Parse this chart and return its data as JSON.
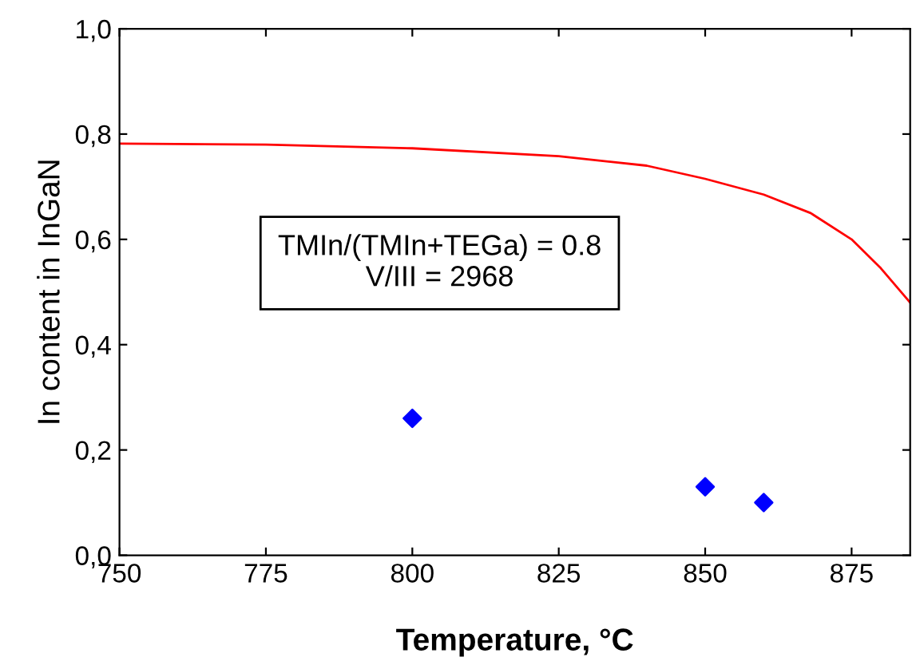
{
  "chart_data": {
    "type": "scatter",
    "xlabel": "Temperature, °C",
    "ylabel": "In content in InGaN",
    "xlim": [
      750,
      885
    ],
    "xticks": [
      750,
      775,
      800,
      825,
      850,
      875
    ],
    "ylim": [
      0,
      1.0
    ],
    "yticks": [
      {
        "value": 0,
        "label": "0,0"
      },
      {
        "value": 0.2,
        "label": "0,2"
      },
      {
        "value": 0.4,
        "label": "0,4"
      },
      {
        "value": 0.6,
        "label": "0,6"
      },
      {
        "value": 0.8,
        "label": "0,8"
      },
      {
        "value": 1.0,
        "label": "1,0"
      }
    ],
    "grid": false,
    "series": [
      {
        "type": "line",
        "color": "#ff0000",
        "x": [
          750,
          775,
          800,
          825,
          840,
          850,
          860,
          868,
          875,
          880,
          885
        ],
        "values": [
          0.782,
          0.78,
          0.773,
          0.758,
          0.74,
          0.715,
          0.685,
          0.65,
          0.6,
          0.545,
          0.48
        ],
        "marker": "none"
      },
      {
        "color": "#0000ff",
        "x": [
          800,
          850,
          860
        ],
        "values": [
          0.26,
          0.13,
          0.1
        ],
        "marker": "diamond"
      }
    ],
    "annotations": [
      "TMIn/(TMIn+TEGa) = 0.8\nV/III = 2968"
    ]
  }
}
